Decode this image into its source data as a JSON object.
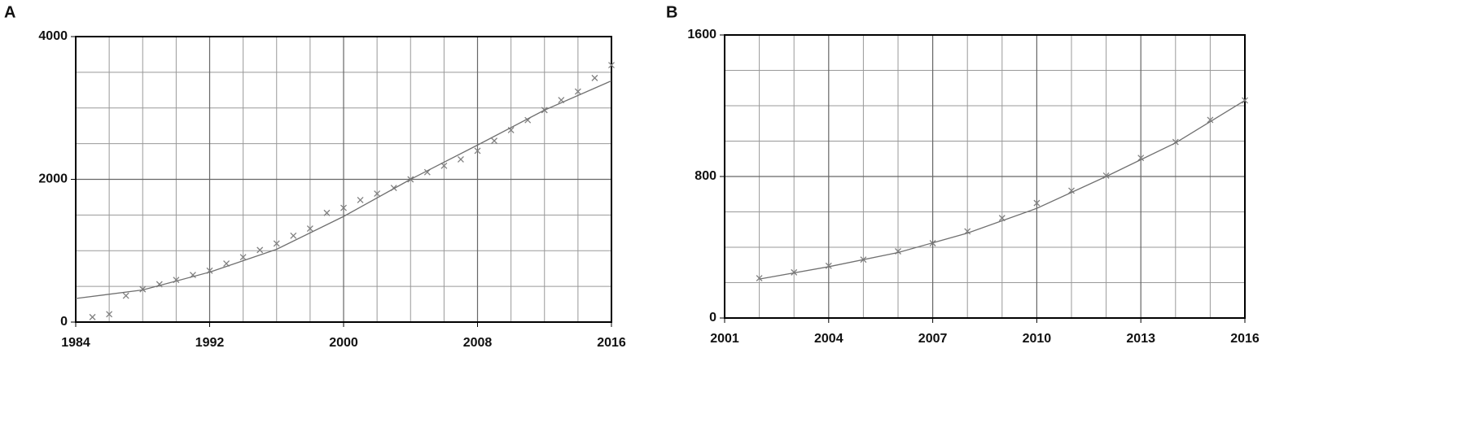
{
  "chart_data": [
    {
      "type": "line",
      "label": "A",
      "xlim": [
        1984,
        2016
      ],
      "ylim": [
        0,
        4000
      ],
      "xticks": [
        1984,
        1992,
        2000,
        2008,
        2016
      ],
      "yticks": [
        0,
        2000,
        4000
      ],
      "grid": true,
      "minor_divisions": {
        "x": 4,
        "y": 4
      },
      "series": [
        {
          "type": "scatter",
          "marker": "x",
          "color": "#808080",
          "x": [
            1985,
            1986,
            1987,
            1988,
            1989,
            1990,
            1991,
            1992,
            1993,
            1994,
            1995,
            1996,
            1997,
            1998,
            1999,
            2000,
            2001,
            2002,
            2003,
            2004,
            2005,
            2006,
            2007,
            2008,
            2009,
            2010,
            2011,
            2012,
            2013,
            2014,
            2015,
            2016
          ],
          "values": [
            70,
            110,
            370,
            460,
            530,
            590,
            660,
            720,
            820,
            910,
            1010,
            1100,
            1210,
            1310,
            1530,
            1600,
            1710,
            1800,
            1880,
            2000,
            2100,
            2190,
            2280,
            2400,
            2540,
            2690,
            2830,
            2970,
            3110,
            3230,
            3420,
            3600
          ]
        },
        {
          "type": "line",
          "color": "#707070",
          "x": [
            1984,
            1988,
            1992,
            1996,
            2000,
            2004,
            2008,
            2012,
            2016
          ],
          "values": [
            330,
            450,
            700,
            1020,
            1480,
            2000,
            2480,
            2970,
            3380
          ]
        }
      ]
    },
    {
      "type": "line",
      "label": "B",
      "xlim": [
        2001,
        2016
      ],
      "ylim": [
        0,
        1600
      ],
      "xticks": [
        2001,
        2004,
        2007,
        2010,
        2013,
        2016
      ],
      "yticks": [
        0,
        800,
        1600
      ],
      "grid": true,
      "minor_divisions": {
        "x": 3,
        "y": 4
      },
      "series": [
        {
          "type": "scatter",
          "marker": "x",
          "color": "#808080",
          "x": [
            2002,
            2003,
            2004,
            2005,
            2006,
            2007,
            2008,
            2009,
            2010,
            2011,
            2012,
            2013,
            2014,
            2015,
            2016
          ],
          "values": [
            225,
            258,
            295,
            330,
            377,
            423,
            490,
            565,
            650,
            720,
            805,
            905,
            995,
            1120,
            1230
          ]
        },
        {
          "type": "line",
          "color": "#707070",
          "x": [
            2002,
            2004,
            2006,
            2008,
            2010,
            2012,
            2014,
            2016
          ],
          "values": [
            220,
            290,
            370,
            480,
            620,
            800,
            990,
            1230
          ]
        }
      ]
    }
  ]
}
